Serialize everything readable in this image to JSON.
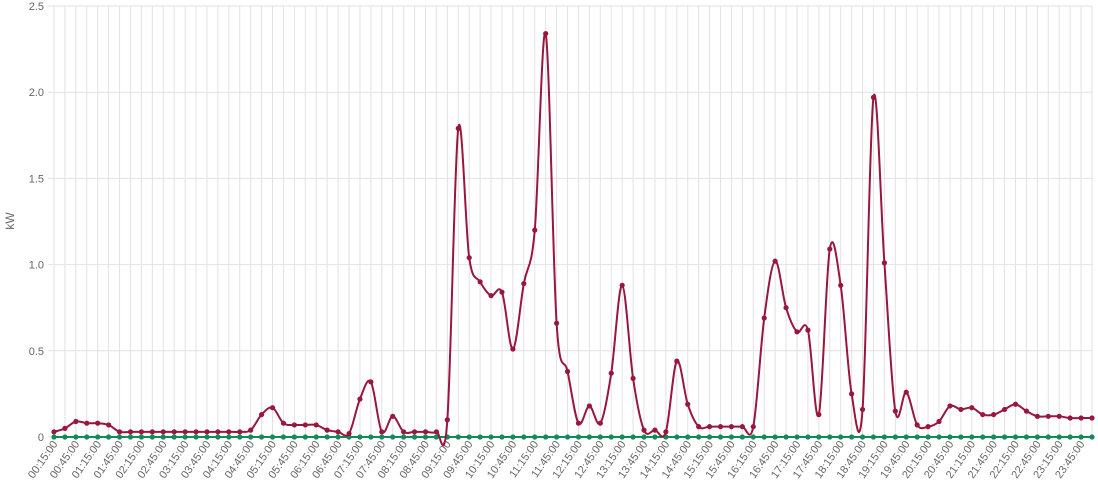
{
  "colors": {
    "series_0": "#99173c",
    "series_1": "#138a5a",
    "grid": "#e2e2e2",
    "text": "#666666"
  },
  "chart_data": {
    "type": "line",
    "ylabel": "kW",
    "ylim": [
      0,
      2.5
    ],
    "yticks": [
      0,
      0.5,
      1.0,
      1.5,
      2.0,
      2.5
    ],
    "ytick_labels": [
      "0",
      "0.5",
      "1.0",
      "1.5",
      "2.0",
      "2.5"
    ],
    "grid": true,
    "x": [
      "00:15:00",
      "00:30:00",
      "00:45:00",
      "01:00:00",
      "01:15:00",
      "01:30:00",
      "01:45:00",
      "02:00:00",
      "02:15:00",
      "02:30:00",
      "02:45:00",
      "03:00:00",
      "03:15:00",
      "03:30:00",
      "03:45:00",
      "04:00:00",
      "04:15:00",
      "04:30:00",
      "04:45:00",
      "05:00:00",
      "05:15:00",
      "05:30:00",
      "05:45:00",
      "06:00:00",
      "06:15:00",
      "06:30:00",
      "06:45:00",
      "07:00:00",
      "07:15:00",
      "07:30:00",
      "07:45:00",
      "08:00:00",
      "08:15:00",
      "08:30:00",
      "08:45:00",
      "09:00:00",
      "09:15:00",
      "09:30:00",
      "09:45:00",
      "10:00:00",
      "10:15:00",
      "10:30:00",
      "10:45:00",
      "11:00:00",
      "11:15:00",
      "11:30:00",
      "11:45:00",
      "12:00:00",
      "12:15:00",
      "12:30:00",
      "12:45:00",
      "13:00:00",
      "13:15:00",
      "13:30:00",
      "13:45:00",
      "14:00:00",
      "14:15:00",
      "14:30:00",
      "14:45:00",
      "15:00:00",
      "15:15:00",
      "15:30:00",
      "15:45:00",
      "16:00:00",
      "16:15:00",
      "16:30:00",
      "16:45:00",
      "17:00:00",
      "17:15:00",
      "17:30:00",
      "17:45:00",
      "18:00:00",
      "18:15:00",
      "18:30:00",
      "18:45:00",
      "19:00:00",
      "19:15:00",
      "19:30:00",
      "19:45:00",
      "20:00:00",
      "20:15:00",
      "20:30:00",
      "20:45:00",
      "21:00:00",
      "21:15:00",
      "21:30:00",
      "21:45:00",
      "22:00:00",
      "22:15:00",
      "22:30:00",
      "22:45:00",
      "23:00:00",
      "23:15:00",
      "23:30:00",
      "23:45:00",
      "24:00:00"
    ],
    "xtick_labels": [
      "00:15:00",
      "00:45:00",
      "01:15:00",
      "01:45:00",
      "02:15:00",
      "02:45:00",
      "03:15:00",
      "03:45:00",
      "04:15:00",
      "04:45:00",
      "05:15:00",
      "05:45:00",
      "06:15:00",
      "06:45:00",
      "07:15:00",
      "07:45:00",
      "08:15:00",
      "08:45:00",
      "09:15:00",
      "09:45:00",
      "10:15:00",
      "10:45:00",
      "11:15:00",
      "11:45:00",
      "12:15:00",
      "12:45:00",
      "13:15:00",
      "13:45:00",
      "14:15:00",
      "14:45:00",
      "15:15:00",
      "15:45:00",
      "16:15:00",
      "16:45:00",
      "17:15:00",
      "17:45:00",
      "18:15:00",
      "18:45:00",
      "19:15:00",
      "19:45:00",
      "20:15:00",
      "20:45:00",
      "21:15:00",
      "21:45:00",
      "22:15:00",
      "22:45:00",
      "23:15:00",
      "23:45:00"
    ],
    "series": [
      {
        "values": [
          0.03,
          0.05,
          0.09,
          0.08,
          0.08,
          0.07,
          0.03,
          0.03,
          0.03,
          0.03,
          0.03,
          0.03,
          0.03,
          0.03,
          0.03,
          0.03,
          0.03,
          0.03,
          0.04,
          0.13,
          0.17,
          0.08,
          0.07,
          0.07,
          0.07,
          0.04,
          0.03,
          0.02,
          0.22,
          0.32,
          0.03,
          0.12,
          0.03,
          0.03,
          0.03,
          0.03,
          0.1,
          1.79,
          1.04,
          0.9,
          0.82,
          0.84,
          0.51,
          0.89,
          1.2,
          2.34,
          0.66,
          0.38,
          0.08,
          0.18,
          0.08,
          0.37,
          0.88,
          0.34,
          0.04,
          0.04,
          0.03,
          0.44,
          0.19,
          0.06,
          0.06,
          0.06,
          0.06,
          0.06,
          0.06,
          0.69,
          1.02,
          0.75,
          0.61,
          0.62,
          0.13,
          1.09,
          0.88,
          0.25,
          0.16,
          1.97,
          1.01,
          0.15,
          0.26,
          0.07,
          0.06,
          0.09,
          0.18,
          0.16,
          0.17,
          0.13,
          0.13,
          0.16,
          0.19,
          0.15,
          0.12,
          0.12,
          0.12,
          0.11,
          0.11,
          0.11
        ]
      },
      {
        "values": [
          0,
          0,
          0,
          0,
          0,
          0,
          0,
          0,
          0,
          0,
          0,
          0,
          0,
          0,
          0,
          0,
          0,
          0,
          0,
          0,
          0,
          0,
          0,
          0,
          0,
          0,
          0,
          0,
          0,
          0,
          0,
          0,
          0,
          0,
          0,
          0,
          0,
          0,
          0,
          0,
          0,
          0,
          0,
          0,
          0,
          0,
          0,
          0,
          0,
          0,
          0,
          0,
          0,
          0,
          0,
          0,
          0,
          0,
          0,
          0,
          0,
          0,
          0,
          0,
          0,
          0,
          0,
          0,
          0,
          0,
          0,
          0,
          0,
          0,
          0,
          0,
          0,
          0,
          0,
          0,
          0,
          0,
          0,
          0,
          0,
          0,
          0,
          0,
          0,
          0,
          0,
          0,
          0,
          0,
          0,
          0
        ]
      }
    ]
  }
}
